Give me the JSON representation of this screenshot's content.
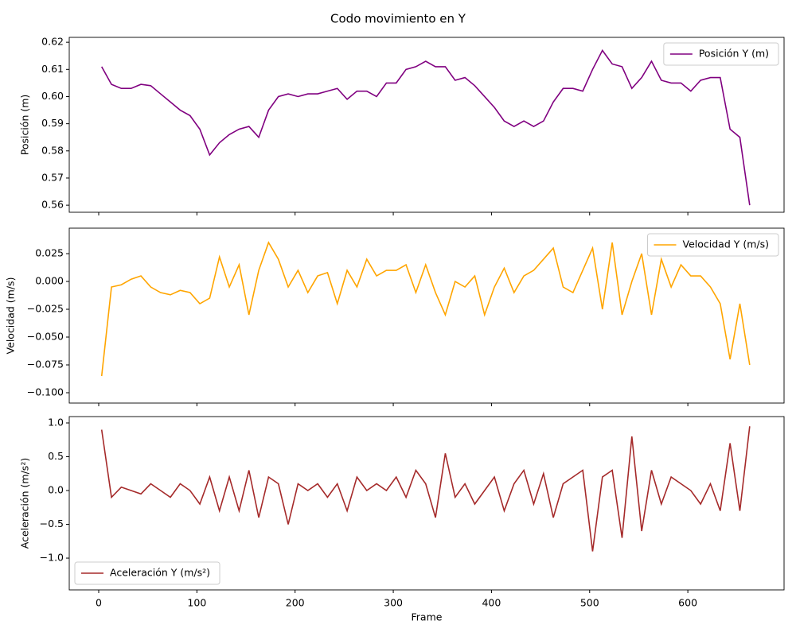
{
  "title": "Codo movimiento en Y",
  "chart_data": [
    {
      "type": "line",
      "ylabel": "Posición (m)",
      "legend": "upper right",
      "xlim": [
        -30,
        698
      ],
      "xticks": [
        0,
        100,
        200,
        300,
        400,
        500,
        600
      ],
      "ylim": [
        0.5574,
        0.6218
      ],
      "yticks": [
        0.56,
        0.57,
        0.58,
        0.59,
        {
          "value": 0.6,
          "label": "0.60"
        },
        0.61,
        0.62
      ],
      "x": [
        3,
        13,
        23,
        33,
        43,
        53,
        63,
        73,
        83,
        93,
        103,
        113,
        123,
        133,
        143,
        153,
        163,
        173,
        183,
        193,
        203,
        213,
        223,
        233,
        243,
        253,
        263,
        273,
        283,
        293,
        303,
        313,
        323,
        333,
        343,
        353,
        363,
        373,
        383,
        393,
        403,
        413,
        423,
        433,
        443,
        453,
        463,
        473,
        483,
        493,
        503,
        513,
        523,
        533,
        543,
        553,
        563,
        573,
        583,
        593,
        603,
        613,
        623,
        633,
        643,
        653,
        663
      ],
      "series": [
        {
          "name": "Posición Y (m)",
          "color": "#800080",
          "values": [
            0.611,
            0.6045,
            0.603,
            0.603,
            0.6045,
            0.604,
            0.601,
            0.598,
            0.595,
            0.593,
            0.588,
            0.5785,
            0.583,
            0.586,
            0.588,
            0.589,
            0.585,
            0.595,
            0.6,
            0.601,
            0.6,
            0.601,
            0.601,
            0.602,
            0.603,
            0.599,
            0.602,
            0.602,
            0.6,
            0.605,
            0.605,
            0.61,
            0.611,
            0.613,
            0.611,
            0.611,
            0.606,
            0.607,
            0.604,
            0.6,
            0.596,
            0.591,
            0.589,
            0.591,
            0.589,
            0.591,
            0.598,
            0.603,
            0.603,
            0.602,
            0.61,
            0.617,
            0.612,
            0.611,
            0.603,
            0.607,
            0.613,
            0.606,
            0.605,
            0.605,
            0.602,
            0.606,
            0.607,
            0.607,
            0.588,
            0.585,
            0.56
          ]
        }
      ]
    },
    {
      "type": "line",
      "ylabel": "Velocidad (m/s)",
      "legend": "upper right",
      "xlim": [
        -30,
        698
      ],
      "xticks": [
        0,
        100,
        200,
        300,
        400,
        500,
        600
      ],
      "ylim": [
        -0.1093,
        0.0479
      ],
      "yticks": [
        {
          "value": -0.1,
          "label": "−0.100"
        },
        {
          "value": -0.075,
          "label": "−0.075"
        },
        {
          "value": -0.05,
          "label": "−0.050"
        },
        {
          "value": -0.025,
          "label": "−0.025"
        },
        {
          "value": 0,
          "label": "0.000"
        },
        0.025
      ],
      "x": [
        3,
        13,
        23,
        33,
        43,
        53,
        63,
        73,
        83,
        93,
        103,
        113,
        123,
        133,
        143,
        153,
        163,
        173,
        183,
        193,
        203,
        213,
        223,
        233,
        243,
        253,
        263,
        273,
        283,
        293,
        303,
        313,
        323,
        333,
        343,
        353,
        363,
        373,
        383,
        393,
        403,
        413,
        423,
        433,
        443,
        453,
        463,
        473,
        483,
        493,
        503,
        513,
        523,
        533,
        543,
        553,
        563,
        573,
        583,
        593,
        603,
        613,
        623,
        633,
        643,
        653,
        663
      ],
      "series": [
        {
          "name": "Velocidad Y (m/s)",
          "color": "#ffa500",
          "values": [
            -0.085,
            -0.005,
            -0.003,
            0.002,
            0.005,
            -0.005,
            -0.01,
            -0.012,
            -0.008,
            -0.01,
            -0.02,
            -0.015,
            0.022,
            -0.005,
            0.015,
            -0.03,
            0.01,
            0.035,
            0.02,
            -0.005,
            0.01,
            -0.01,
            0.005,
            0.008,
            -0.02,
            0.01,
            -0.005,
            0.02,
            0.005,
            0.01,
            0.01,
            0.015,
            -0.01,
            0.015,
            -0.01,
            -0.03,
            0,
            -0.005,
            0.005,
            -0.03,
            -0.005,
            0.012,
            -0.01,
            0.005,
            0.01,
            0.02,
            0.03,
            -0.005,
            -0.01,
            0.01,
            0.03,
            -0.025,
            0.035,
            -0.03,
            0,
            0.025,
            -0.03,
            0.02,
            -0.005,
            0.015,
            0.005,
            0.005,
            -0.005,
            -0.02,
            -0.07,
            -0.02,
            -0.075
          ]
        }
      ]
    },
    {
      "type": "line",
      "ylabel": "Aceleración (m/s²)",
      "xlabel": "Frame",
      "legend": "lower left",
      "xlim": [
        -30,
        698
      ],
      "xticks": [
        0,
        100,
        200,
        300,
        400,
        500,
        600
      ],
      "ylim": [
        -1.47,
        1.094
      ],
      "yticks": [
        {
          "value": -1,
          "label": "−1.0"
        },
        {
          "value": -0.5,
          "label": "−0.5"
        },
        {
          "value": 0,
          "label": "0.0"
        },
        0.5,
        {
          "value": 1,
          "label": "1.0"
        }
      ],
      "x": [
        3,
        13,
        23,
        33,
        43,
        53,
        63,
        73,
        83,
        93,
        103,
        113,
        123,
        133,
        143,
        153,
        163,
        173,
        183,
        193,
        203,
        213,
        223,
        233,
        243,
        253,
        263,
        273,
        283,
        293,
        303,
        313,
        323,
        333,
        343,
        353,
        363,
        373,
        383,
        393,
        403,
        413,
        423,
        433,
        443,
        453,
        463,
        473,
        483,
        493,
        503,
        513,
        523,
        533,
        543,
        553,
        563,
        573,
        583,
        593,
        603,
        613,
        623,
        633,
        643,
        653,
        663
      ],
      "series": [
        {
          "name": "Aceleración Y (m/s²)",
          "color": "#a52a2a",
          "values": [
            0.9,
            -0.1,
            0.05,
            0,
            -0.05,
            0.1,
            0,
            -0.1,
            0.1,
            0,
            -0.2,
            0.2,
            -0.3,
            0.2,
            -0.3,
            0.3,
            -0.4,
            0.2,
            0.1,
            -0.5,
            0.1,
            0,
            0.1,
            -0.1,
            0.1,
            -0.3,
            0.2,
            0,
            0.1,
            0,
            0.2,
            -0.1,
            0.3,
            0.1,
            -0.4,
            0.55,
            -0.1,
            0.1,
            -0.2,
            0,
            0.2,
            -0.3,
            0.1,
            0.3,
            -0.2,
            0.25,
            -0.4,
            0.1,
            0.2,
            0.3,
            -0.9,
            0.2,
            0.3,
            -0.7,
            0.8,
            -0.6,
            0.3,
            -0.2,
            0.2,
            0.1,
            0,
            -0.2,
            0.1,
            -0.3,
            0.7,
            -0.3,
            0.95
          ]
        }
      ]
    }
  ]
}
